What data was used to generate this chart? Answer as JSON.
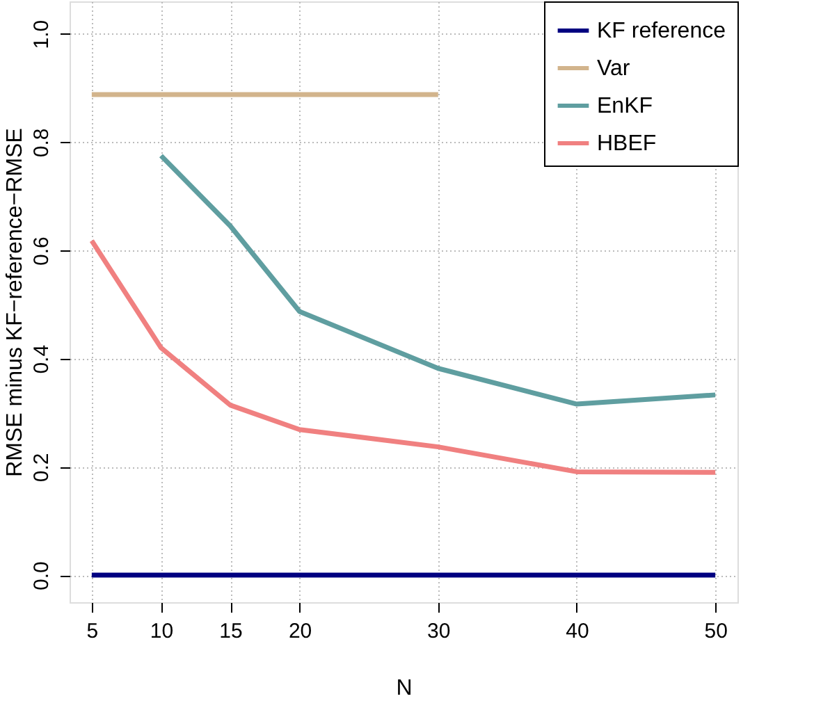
{
  "chart_data": {
    "type": "line",
    "xlabel": "N",
    "ylabel": "RMSE minus KF−reference−RMSE",
    "x": [
      5,
      10,
      15,
      20,
      30,
      40,
      50
    ],
    "series": [
      {
        "name": "KF reference",
        "color": "#000080",
        "values": [
          0,
          0,
          0,
          0,
          0,
          0,
          0
        ]
      },
      {
        "name": "Var",
        "color": "#d2b48c",
        "values": [
          0.888,
          0.888,
          0.888,
          0.888,
          0.888,
          null,
          null
        ]
      },
      {
        "name": "EnKF",
        "color": "#5f9ea0",
        "values": [
          null,
          0.775,
          0.645,
          0.487,
          0.382,
          0.316,
          0.333
        ]
      },
      {
        "name": "HBEF",
        "color": "#f08080",
        "values": [
          0.618,
          0.42,
          0.314,
          0.269,
          0.237,
          0.191,
          0.19
        ]
      }
    ],
    "xlim": [
      3.4,
      51.6
    ],
    "ylim": [
      -0.05,
      1.06
    ],
    "xticks": [
      5,
      10,
      15,
      20,
      30,
      40,
      50
    ],
    "yticks": [
      {
        "value": 0,
        "label": "0.0"
      },
      {
        "value": 0.2,
        "label": "0.2"
      },
      {
        "value": 0.4,
        "label": "0.4"
      },
      {
        "value": 0.6,
        "label": "0.6"
      },
      {
        "value": 0.8,
        "label": "0.8"
      },
      {
        "value": 1.0,
        "label": "1.0"
      }
    ],
    "grid": true,
    "legend": "top right",
    "line_style": "solid",
    "marker": "none"
  }
}
